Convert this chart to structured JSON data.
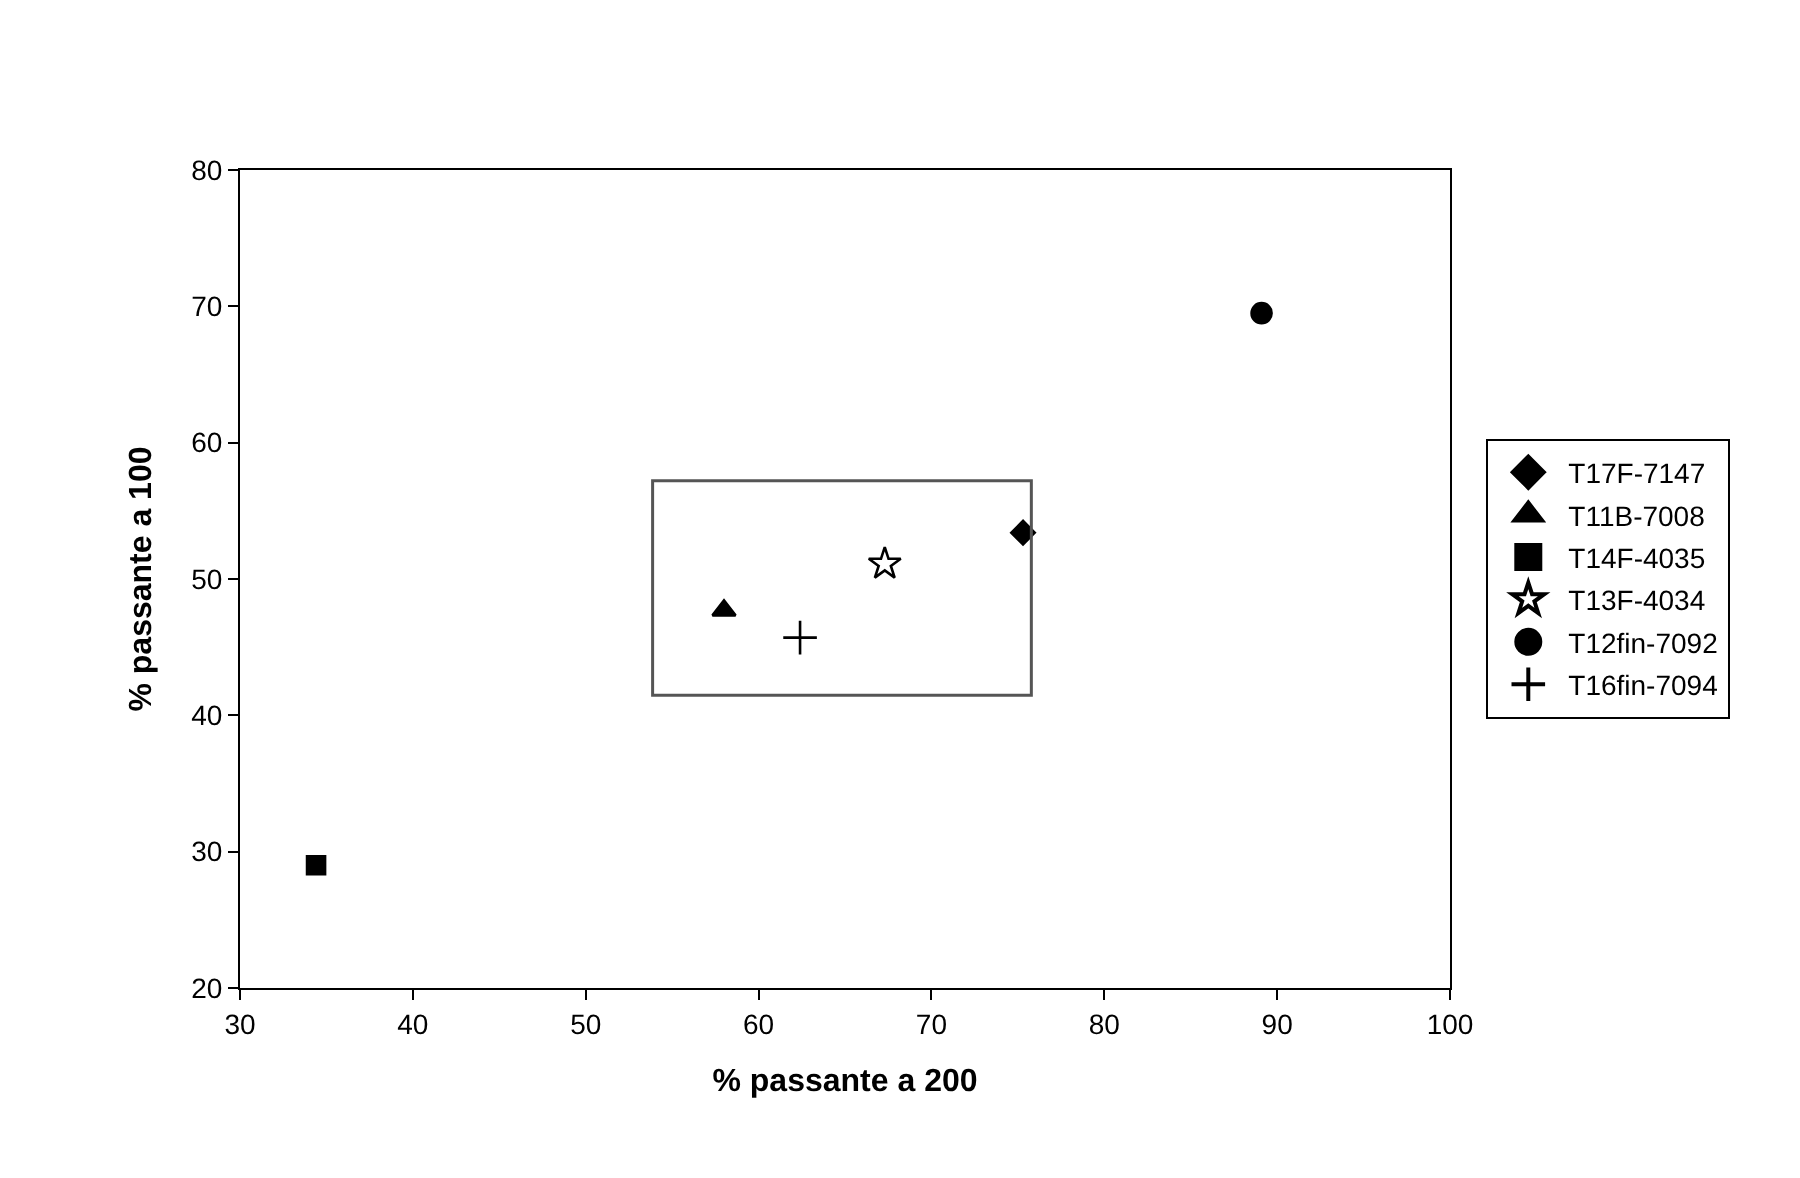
{
  "chart_data": {
    "type": "scatter",
    "xlabel": "% passante a 200",
    "ylabel": "% passante a 100",
    "xlim": [
      30,
      100
    ],
    "xticks": [
      30,
      40,
      50,
      60,
      70,
      80,
      90,
      100
    ],
    "ylim": [
      20,
      80
    ],
    "yticks": [
      20,
      30,
      40,
      50,
      60,
      70,
      80
    ],
    "legend": "right",
    "series": [
      {
        "name": "T17F-7147",
        "color": "#000000",
        "marker": "diamond",
        "x": [
          75.3
        ],
        "values": [
          53.4
        ]
      },
      {
        "name": "T11B-7008",
        "color": "#000000",
        "marker": "triangle",
        "x": [
          58.0
        ],
        "values": [
          47.7
        ]
      },
      {
        "name": "T14F-4035",
        "color": "#000000",
        "marker": "square",
        "x": [
          34.4
        ],
        "values": [
          29.0
        ]
      },
      {
        "name": "T13F-4034",
        "color": "#000000",
        "marker": "star",
        "x": [
          67.3
        ],
        "values": [
          51.1
        ]
      },
      {
        "name": "T12fin-7092",
        "color": "#000000",
        "marker": "circle",
        "x": [
          89.1
        ],
        "values": [
          69.5
        ]
      },
      {
        "name": "T16fin-7094",
        "color": "#000000",
        "marker": "cross",
        "x": [
          62.4
        ],
        "values": [
          45.7
        ]
      }
    ]
  }
}
